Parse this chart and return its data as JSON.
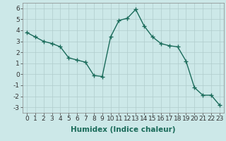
{
  "x": [
    0,
    1,
    2,
    3,
    4,
    5,
    6,
    7,
    8,
    9,
    10,
    11,
    12,
    13,
    14,
    15,
    16,
    17,
    18,
    19,
    20,
    21,
    22,
    23
  ],
  "y": [
    3.8,
    3.4,
    3.0,
    2.8,
    2.5,
    1.5,
    1.3,
    1.1,
    -0.1,
    -0.2,
    3.4,
    4.9,
    5.1,
    5.9,
    4.4,
    3.4,
    2.8,
    2.6,
    2.5,
    1.2,
    -1.2,
    -1.9,
    -1.9,
    -2.8
  ],
  "line_color": "#1a6b5a",
  "marker": "+",
  "marker_size": 4,
  "xlabel": "Humidex (Indice chaleur)",
  "xlim": [
    -0.5,
    23.5
  ],
  "ylim": [
    -3.5,
    6.5
  ],
  "yticks": [
    -3,
    -2,
    -1,
    0,
    1,
    2,
    3,
    4,
    5,
    6
  ],
  "xticks": [
    0,
    1,
    2,
    3,
    4,
    5,
    6,
    7,
    8,
    9,
    10,
    11,
    12,
    13,
    14,
    15,
    16,
    17,
    18,
    19,
    20,
    21,
    22,
    23
  ],
  "background_color": "#cce8e8",
  "grid_color": "#b0cccc",
  "tick_font_size": 6.5,
  "xlabel_fontsize": 7.5
}
